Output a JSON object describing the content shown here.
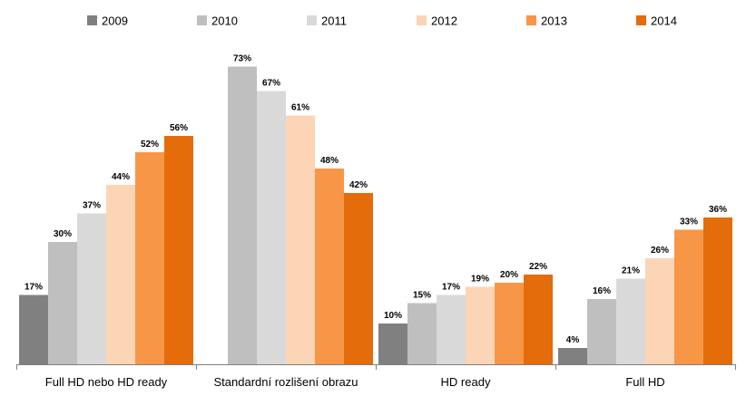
{
  "chart_data": {
    "type": "bar",
    "title": "",
    "xlabel": "",
    "ylabel": "",
    "ylim": [
      0,
      75
    ],
    "grid": false,
    "legend_position": "top",
    "value_suffix": "%",
    "categories": [
      "Full HD nebo HD ready",
      "Standardní rozlišení obrazu",
      "HD ready",
      "Full HD"
    ],
    "series": [
      {
        "name": "2009",
        "color": "#808080",
        "values": [
          17,
          null,
          10,
          4
        ]
      },
      {
        "name": "2010",
        "color": "#BFBFBF",
        "values": [
          30,
          73,
          15,
          16
        ]
      },
      {
        "name": "2011",
        "color": "#D9D9D9",
        "values": [
          37,
          67,
          17,
          21
        ]
      },
      {
        "name": "2012",
        "color": "#FBD5B5",
        "values": [
          44,
          61,
          19,
          26
        ]
      },
      {
        "name": "2013",
        "color": "#F79646",
        "values": [
          52,
          48,
          20,
          33
        ]
      },
      {
        "name": "2014",
        "color": "#E46C0A",
        "values": [
          56,
          42,
          22,
          36
        ]
      }
    ]
  }
}
